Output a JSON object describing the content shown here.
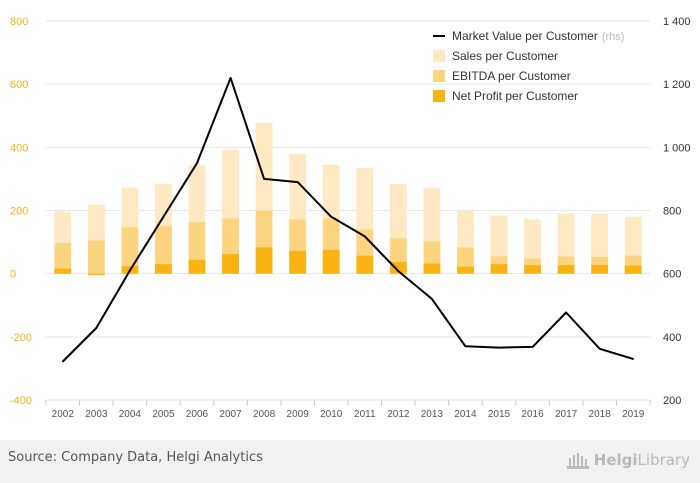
{
  "colors": {
    "sales": "#fee9c2",
    "ebitda": "#fdd480",
    "net_profit": "#fbb313",
    "market_value": "#000000",
    "left_axis": "#f0b41e",
    "right_axis": "#333333",
    "grid": "#e6e6e6"
  },
  "chart_data": {
    "type": "bar",
    "categories": [
      "2002",
      "2003",
      "2004",
      "2005",
      "2006",
      "2007",
      "2008",
      "2009",
      "2010",
      "2011",
      "2012",
      "2013",
      "2014",
      "2015",
      "2016",
      "2017",
      "2018",
      "2019"
    ],
    "series": [
      {
        "name": "Sales per Customer",
        "type": "bar",
        "axis": "left",
        "values": [
          197,
          218,
          272,
          285,
          344,
          392,
          478,
          380,
          345,
          335,
          284,
          272,
          200,
          184,
          172,
          190,
          190,
          180
        ]
      },
      {
        "name": "EBITDA per Customer",
        "type": "bar",
        "axis": "left",
        "values": [
          97,
          105,
          147,
          150,
          163,
          175,
          200,
          172,
          175,
          140,
          112,
          102,
          83,
          55,
          48,
          54,
          53,
          57
        ]
      },
      {
        "name": "Net Profit per Customer",
        "type": "bar",
        "axis": "left",
        "values": [
          16,
          -5,
          24,
          30,
          44,
          62,
          83,
          72,
          75,
          57,
          37,
          32,
          22,
          30,
          27,
          27,
          27,
          26
        ]
      },
      {
        "name": "Market Value per Customer",
        "type": "line",
        "axis": "right",
        "values": [
          322,
          428,
          610,
          780,
          950,
          1220,
          900,
          890,
          780,
          718,
          608,
          520,
          370,
          366,
          368,
          477,
          362,
          330
        ]
      }
    ],
    "left_axis": {
      "ylim": [
        -400,
        800
      ],
      "ticks": [
        -400,
        -200,
        0,
        200,
        400,
        600,
        800
      ],
      "tick_labels": [
        "-400",
        "-200",
        "0",
        "200",
        "400",
        "600",
        "800"
      ]
    },
    "right_axis": {
      "ylim": [
        200,
        1400
      ],
      "ticks": [
        200,
        400,
        600,
        800,
        1000,
        1200,
        1400
      ],
      "tick_labels": [
        "200",
        "400",
        "600",
        "800",
        "1 000",
        "1 200",
        "1 400"
      ]
    },
    "grid": true,
    "legend_position": "top-right"
  },
  "legend": {
    "items": [
      {
        "label": "Market Value per Customer",
        "note": "(rhs)",
        "kind": "line",
        "color_key": "market_value"
      },
      {
        "label": "Sales per Customer",
        "note": "",
        "kind": "box",
        "color_key": "sales"
      },
      {
        "label": "EBITDA per Customer",
        "note": "",
        "kind": "box",
        "color_key": "ebitda"
      },
      {
        "label": "Net Profit per Customer",
        "note": "",
        "kind": "box",
        "color_key": "net_profit"
      }
    ]
  },
  "footer": {
    "source": "Source: Company Data, Helgi Analytics",
    "brand_name": "Helgi",
    "brand_suffix": "Library"
  }
}
